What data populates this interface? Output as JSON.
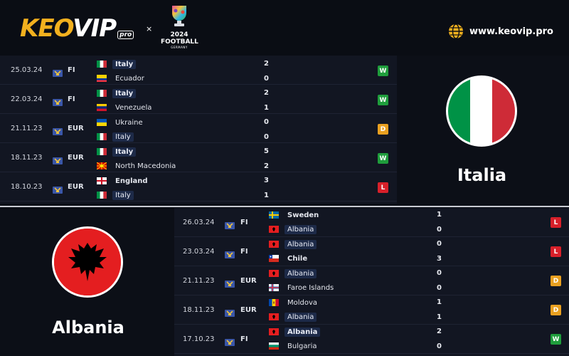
{
  "header": {
    "brand_a": "KEO",
    "brand_b": "VIP",
    "brand_pro": "pro",
    "times": "×",
    "euro_year": "2024",
    "euro_football": "FOOTBALL",
    "euro_country": "GERMANY",
    "site_url": "www.keovip.pro",
    "icons": [
      "globe-icon",
      "trophy-icon"
    ]
  },
  "italy": {
    "name": "Italia",
    "colors": {
      "green": "#009246",
      "white": "#ffffff",
      "red": "#ce2b37"
    },
    "matches": [
      {
        "date": "25.03.24",
        "comp": "FI",
        "home": "Italy",
        "home_flag": "italy",
        "home_hl": true,
        "home_bold": true,
        "away": "Ecuador",
        "away_flag": "ecuador",
        "away_hl": false,
        "away_bold": false,
        "home_score": "2",
        "away_score": "0",
        "result": "W"
      },
      {
        "date": "22.03.24",
        "comp": "FI",
        "home": "Italy",
        "home_flag": "italy",
        "home_hl": true,
        "home_bold": true,
        "away": "Venezuela",
        "away_flag": "venezuela",
        "away_hl": false,
        "away_bold": false,
        "home_score": "2",
        "away_score": "1",
        "result": "W"
      },
      {
        "date": "21.11.23",
        "comp": "EUR",
        "home": "Ukraine",
        "home_flag": "ukraine",
        "home_hl": false,
        "home_bold": false,
        "away": "Italy",
        "away_flag": "italy",
        "away_hl": true,
        "away_bold": false,
        "home_score": "0",
        "away_score": "0",
        "result": "D"
      },
      {
        "date": "18.11.23",
        "comp": "EUR",
        "home": "Italy",
        "home_flag": "italy",
        "home_hl": true,
        "home_bold": true,
        "away": "North Macedonia",
        "away_flag": "macedonia",
        "away_hl": false,
        "away_bold": false,
        "home_score": "5",
        "away_score": "2",
        "result": "W"
      },
      {
        "date": "18.10.23",
        "comp": "EUR",
        "home": "England",
        "home_flag": "england",
        "home_hl": false,
        "home_bold": true,
        "away": "Italy",
        "away_flag": "italy",
        "away_hl": true,
        "away_bold": false,
        "home_score": "3",
        "away_score": "1",
        "result": "L"
      }
    ]
  },
  "albania": {
    "name": "Albania",
    "colors": {
      "red": "#e41e20",
      "black": "#000000"
    },
    "matches": [
      {
        "date": "26.03.24",
        "comp": "FI",
        "home": "Sweden",
        "home_flag": "sweden",
        "home_hl": false,
        "home_bold": true,
        "away": "Albania",
        "away_flag": "albania",
        "away_hl": true,
        "away_bold": false,
        "home_score": "1",
        "away_score": "0",
        "result": "L"
      },
      {
        "date": "23.03.24",
        "comp": "FI",
        "home": "Albania",
        "home_flag": "albania",
        "home_hl": true,
        "home_bold": false,
        "away": "Chile",
        "away_flag": "chile",
        "away_hl": false,
        "away_bold": true,
        "home_score": "0",
        "away_score": "3",
        "result": "L"
      },
      {
        "date": "21.11.23",
        "comp": "EUR",
        "home": "Albania",
        "home_flag": "albania",
        "home_hl": true,
        "home_bold": false,
        "away": "Faroe Islands",
        "away_flag": "faroe",
        "away_hl": false,
        "away_bold": false,
        "home_score": "0",
        "away_score": "0",
        "result": "D"
      },
      {
        "date": "18.11.23",
        "comp": "EUR",
        "home": "Moldova",
        "home_flag": "moldova",
        "home_hl": false,
        "home_bold": false,
        "away": "Albania",
        "away_flag": "albania",
        "away_hl": true,
        "away_bold": false,
        "home_score": "1",
        "away_score": "1",
        "result": "D"
      },
      {
        "date": "17.10.23",
        "comp": "FI",
        "home": "Albania",
        "home_flag": "albania",
        "home_hl": true,
        "home_bold": true,
        "away": "Bulgaria",
        "away_flag": "bulgaria",
        "away_hl": false,
        "away_bold": false,
        "home_score": "2",
        "away_score": "0",
        "result": "W"
      }
    ]
  },
  "result_colors": {
    "W": "#1f9d3c",
    "D": "#e9a020",
    "L": "#d8202a"
  }
}
